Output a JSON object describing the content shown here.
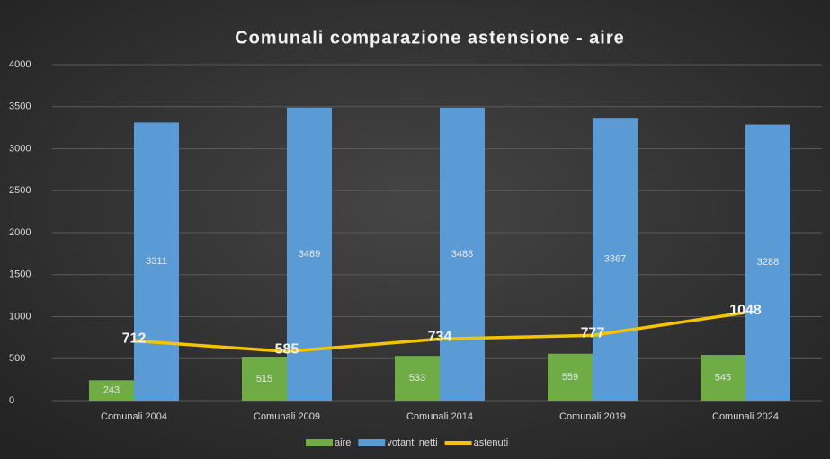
{
  "chart_data": {
    "type": "bar_line",
    "title": "Comunali comparazione astensione - aire",
    "categories": [
      "Comunali 2004",
      "Comunali 2009",
      "Comunali 2014",
      "Comunali 2019",
      "Comunali 2024"
    ],
    "series": [
      {
        "name": "aire",
        "color": "#6fac46",
        "type": "bar",
        "values": [
          243,
          515,
          533,
          559,
          545
        ]
      },
      {
        "name": "votanti netti",
        "color": "#5b9bd5",
        "type": "bar",
        "values": [
          3311,
          3489,
          3488,
          3367,
          3288
        ]
      },
      {
        "name": "astenuti",
        "color": "#f5c400",
        "type": "line",
        "values": [
          712,
          585,
          734,
          777,
          1048
        ]
      }
    ],
    "ylim": [
      0,
      4000
    ],
    "yticks": [
      0,
      500,
      1000,
      1500,
      2000,
      2500,
      3000,
      3500,
      4000
    ],
    "grid": true,
    "legend": "bottom"
  }
}
